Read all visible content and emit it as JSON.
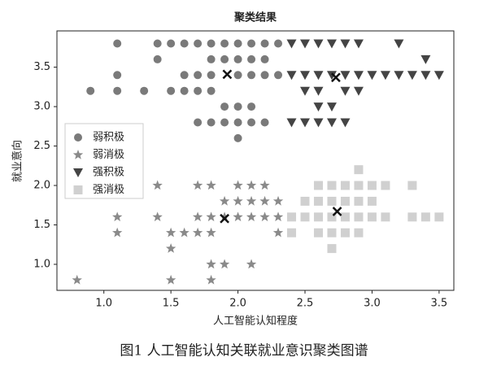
{
  "chart_data": {
    "type": "scatter",
    "title": "聚类结果",
    "xlabel": "人工智能认知程度",
    "ylabel": "就业意向",
    "caption": "图1 人工智能认知关联就业意识聚类图谱",
    "xlim": [
      0.65,
      3.61
    ],
    "ylim": [
      0.67,
      3.96
    ],
    "xticks": [
      {
        "value": 1,
        "label": "1.0"
      },
      1.5,
      {
        "value": 2,
        "label": "2.0"
      },
      2.5,
      {
        "value": 3,
        "label": "3.0"
      },
      3.5
    ],
    "yticks": [
      {
        "value": 1,
        "label": "1.0"
      },
      1.5,
      {
        "value": 2,
        "label": "2.0"
      },
      2.5,
      {
        "value": 3,
        "label": "3.0"
      },
      3.5
    ],
    "grid": false,
    "legend": "center left",
    "series": [
      {
        "name": "弱积极",
        "color": "#7a7a7a",
        "marker": "circle",
        "x": [
          1.1,
          1.4,
          1.5,
          1.6,
          1.7,
          1.8,
          1.9,
          2.0,
          2.1,
          2.2,
          2.3,
          1.4,
          1.8,
          1.9,
          2.0,
          2.1,
          2.2,
          1.1,
          1.6,
          1.7,
          1.8,
          2.0,
          2.1,
          2.2,
          2.3,
          0.9,
          1.1,
          1.3,
          1.5,
          1.6,
          1.7,
          1.8,
          1.9,
          2.0,
          2.1,
          1.7,
          1.8,
          1.9,
          2.0,
          2.1,
          2.2,
          2.0
        ],
        "y": [
          3.8,
          3.8,
          3.8,
          3.8,
          3.8,
          3.8,
          3.8,
          3.8,
          3.8,
          3.8,
          3.8,
          3.6,
          3.6,
          3.6,
          3.6,
          3.6,
          3.6,
          3.4,
          3.4,
          3.4,
          3.4,
          3.4,
          3.4,
          3.4,
          3.4,
          3.2,
          3.2,
          3.2,
          3.2,
          3.2,
          3.2,
          3.2,
          3.0,
          3.0,
          3.0,
          2.8,
          2.8,
          2.8,
          2.8,
          2.8,
          2.8,
          2.6
        ]
      },
      {
        "name": "弱消极",
        "color": "#8a8a8a",
        "marker": "star",
        "x": [
          1.4,
          1.7,
          1.8,
          2.0,
          2.1,
          2.2,
          1.9,
          2.0,
          2.1,
          2.2,
          2.3,
          1.1,
          1.4,
          1.7,
          1.8,
          1.9,
          2.0,
          2.1,
          2.2,
          2.3,
          1.1,
          1.5,
          1.6,
          1.7,
          1.8,
          2.3,
          1.5,
          1.8,
          1.9,
          2.1,
          0.8,
          1.5,
          1.8
        ],
        "y": [
          2.0,
          2.0,
          2.0,
          2.0,
          2.0,
          2.0,
          1.8,
          1.8,
          1.8,
          1.8,
          1.8,
          1.6,
          1.6,
          1.6,
          1.6,
          1.6,
          1.6,
          1.6,
          1.6,
          1.6,
          1.4,
          1.4,
          1.4,
          1.4,
          1.4,
          1.4,
          1.2,
          1.0,
          1.0,
          1.0,
          0.8,
          0.8,
          0.8
        ]
      },
      {
        "name": "强积极",
        "color": "#444444",
        "marker": "triangle",
        "x": [
          2.4,
          2.5,
          2.6,
          2.7,
          2.8,
          2.9,
          3.2,
          3.4,
          2.4,
          2.5,
          2.6,
          2.7,
          2.8,
          2.9,
          3.0,
          3.1,
          3.2,
          3.3,
          3.4,
          3.5,
          2.5,
          2.6,
          2.8,
          2.9,
          2.6,
          2.7,
          2.4,
          2.5,
          2.6,
          2.7,
          2.8
        ],
        "y": [
          3.8,
          3.8,
          3.8,
          3.8,
          3.8,
          3.8,
          3.8,
          3.6,
          3.4,
          3.4,
          3.4,
          3.4,
          3.4,
          3.4,
          3.4,
          3.4,
          3.4,
          3.4,
          3.4,
          3.4,
          3.2,
          3.2,
          3.2,
          3.2,
          3.0,
          3.0,
          2.8,
          2.8,
          2.8,
          2.8,
          2.8
        ]
      },
      {
        "name": "强消极",
        "color": "#d0d0d0",
        "marker": "square",
        "x": [
          2.9,
          2.6,
          2.7,
          2.8,
          2.9,
          3.0,
          3.1,
          3.3,
          2.5,
          2.6,
          2.7,
          2.8,
          2.9,
          3.0,
          2.4,
          2.5,
          2.6,
          2.7,
          2.8,
          2.9,
          3.0,
          3.1,
          3.3,
          3.4,
          3.5,
          2.4,
          2.6,
          2.7,
          2.8,
          2.9,
          2.7
        ],
        "y": [
          2.2,
          2.0,
          2.0,
          2.0,
          2.0,
          2.0,
          2.0,
          2.0,
          1.8,
          1.8,
          1.8,
          1.8,
          1.8,
          1.8,
          1.6,
          1.6,
          1.6,
          1.6,
          1.6,
          1.6,
          1.6,
          1.6,
          1.6,
          1.6,
          1.6,
          1.4,
          1.4,
          1.4,
          1.4,
          1.4,
          1.2
        ]
      }
    ],
    "centers": {
      "color": "#111111",
      "x": [
        1.92,
        1.9,
        2.73,
        2.74
      ],
      "y": [
        3.41,
        1.58,
        3.37,
        1.67
      ]
    }
  }
}
